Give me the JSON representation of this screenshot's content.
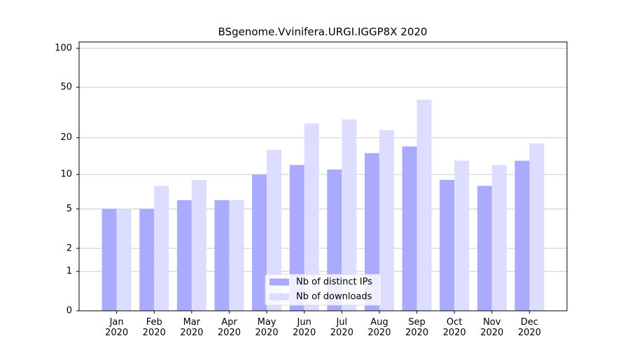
{
  "chart_data": {
    "type": "bar",
    "title": "BSgenome.Vvinifera.URGI.IGGP8X 2020",
    "categories": [
      "Jan 2020",
      "Feb 2020",
      "Mar 2020",
      "Apr 2020",
      "May 2020",
      "Jun 2020",
      "Jul 2020",
      "Aug 2020",
      "Sep 2020",
      "Oct 2020",
      "Nov 2020",
      "Dec 2020"
    ],
    "series": [
      {
        "name": "Nb of distinct IPs",
        "color": "#aaaaff",
        "values": [
          5,
          5,
          6,
          6,
          10,
          12,
          11,
          15,
          17,
          9,
          8,
          13
        ]
      },
      {
        "name": "Nb of downloads",
        "color": "#ddddff",
        "values": [
          5,
          8,
          9,
          6,
          16,
          26,
          28,
          23,
          40,
          13,
          12,
          18
        ]
      }
    ],
    "y_scale": "log1p",
    "ylim": [
      0,
      112
    ],
    "yticks": [
      0,
      1,
      2,
      5,
      10,
      20,
      50,
      100
    ],
    "grid": true,
    "legend": "lower center"
  }
}
